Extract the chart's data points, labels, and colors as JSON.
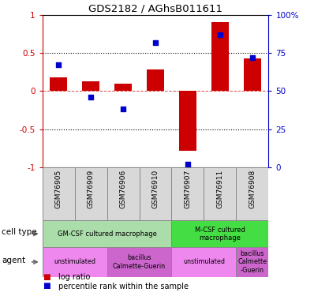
{
  "title": "GDS2182 / AGhsB011611",
  "samples": [
    "GSM76905",
    "GSM76909",
    "GSM76906",
    "GSM76910",
    "GSM76907",
    "GSM76911",
    "GSM76908"
  ],
  "log_ratio": [
    0.18,
    0.13,
    0.1,
    0.28,
    -0.78,
    0.9,
    0.43
  ],
  "percentile": [
    67,
    46,
    38,
    82,
    2,
    87,
    72
  ],
  "bar_color": "#cc0000",
  "dot_color": "#0000cc",
  "ylim": [
    -1,
    1
  ],
  "y2lim": [
    0,
    100
  ],
  "cell_type_groups": [
    {
      "label": "GM-CSF cultured macrophage",
      "start": 0,
      "end": 4,
      "color": "#aaddaa"
    },
    {
      "label": "M-CSF cultured\nmacrophage",
      "start": 4,
      "end": 7,
      "color": "#44dd44"
    }
  ],
  "agent_groups": [
    {
      "label": "unstimulated",
      "start": 0,
      "end": 2,
      "color": "#ee88ee"
    },
    {
      "label": "bacillus\nCalmette-Guerin",
      "start": 2,
      "end": 4,
      "color": "#cc66cc"
    },
    {
      "label": "unstimulated",
      "start": 4,
      "end": 6,
      "color": "#ee88ee"
    },
    {
      "label": "bacillus\nCalmette\n-Guerin",
      "start": 6,
      "end": 7,
      "color": "#cc66cc"
    }
  ],
  "cell_type_label": "cell type",
  "agent_label": "agent",
  "legend_bar_label": "log ratio",
  "legend_dot_label": "percentile rank within the sample",
  "tick_color_left": "#cc0000",
  "tick_color_right": "#0000cc",
  "n_samples": 7
}
